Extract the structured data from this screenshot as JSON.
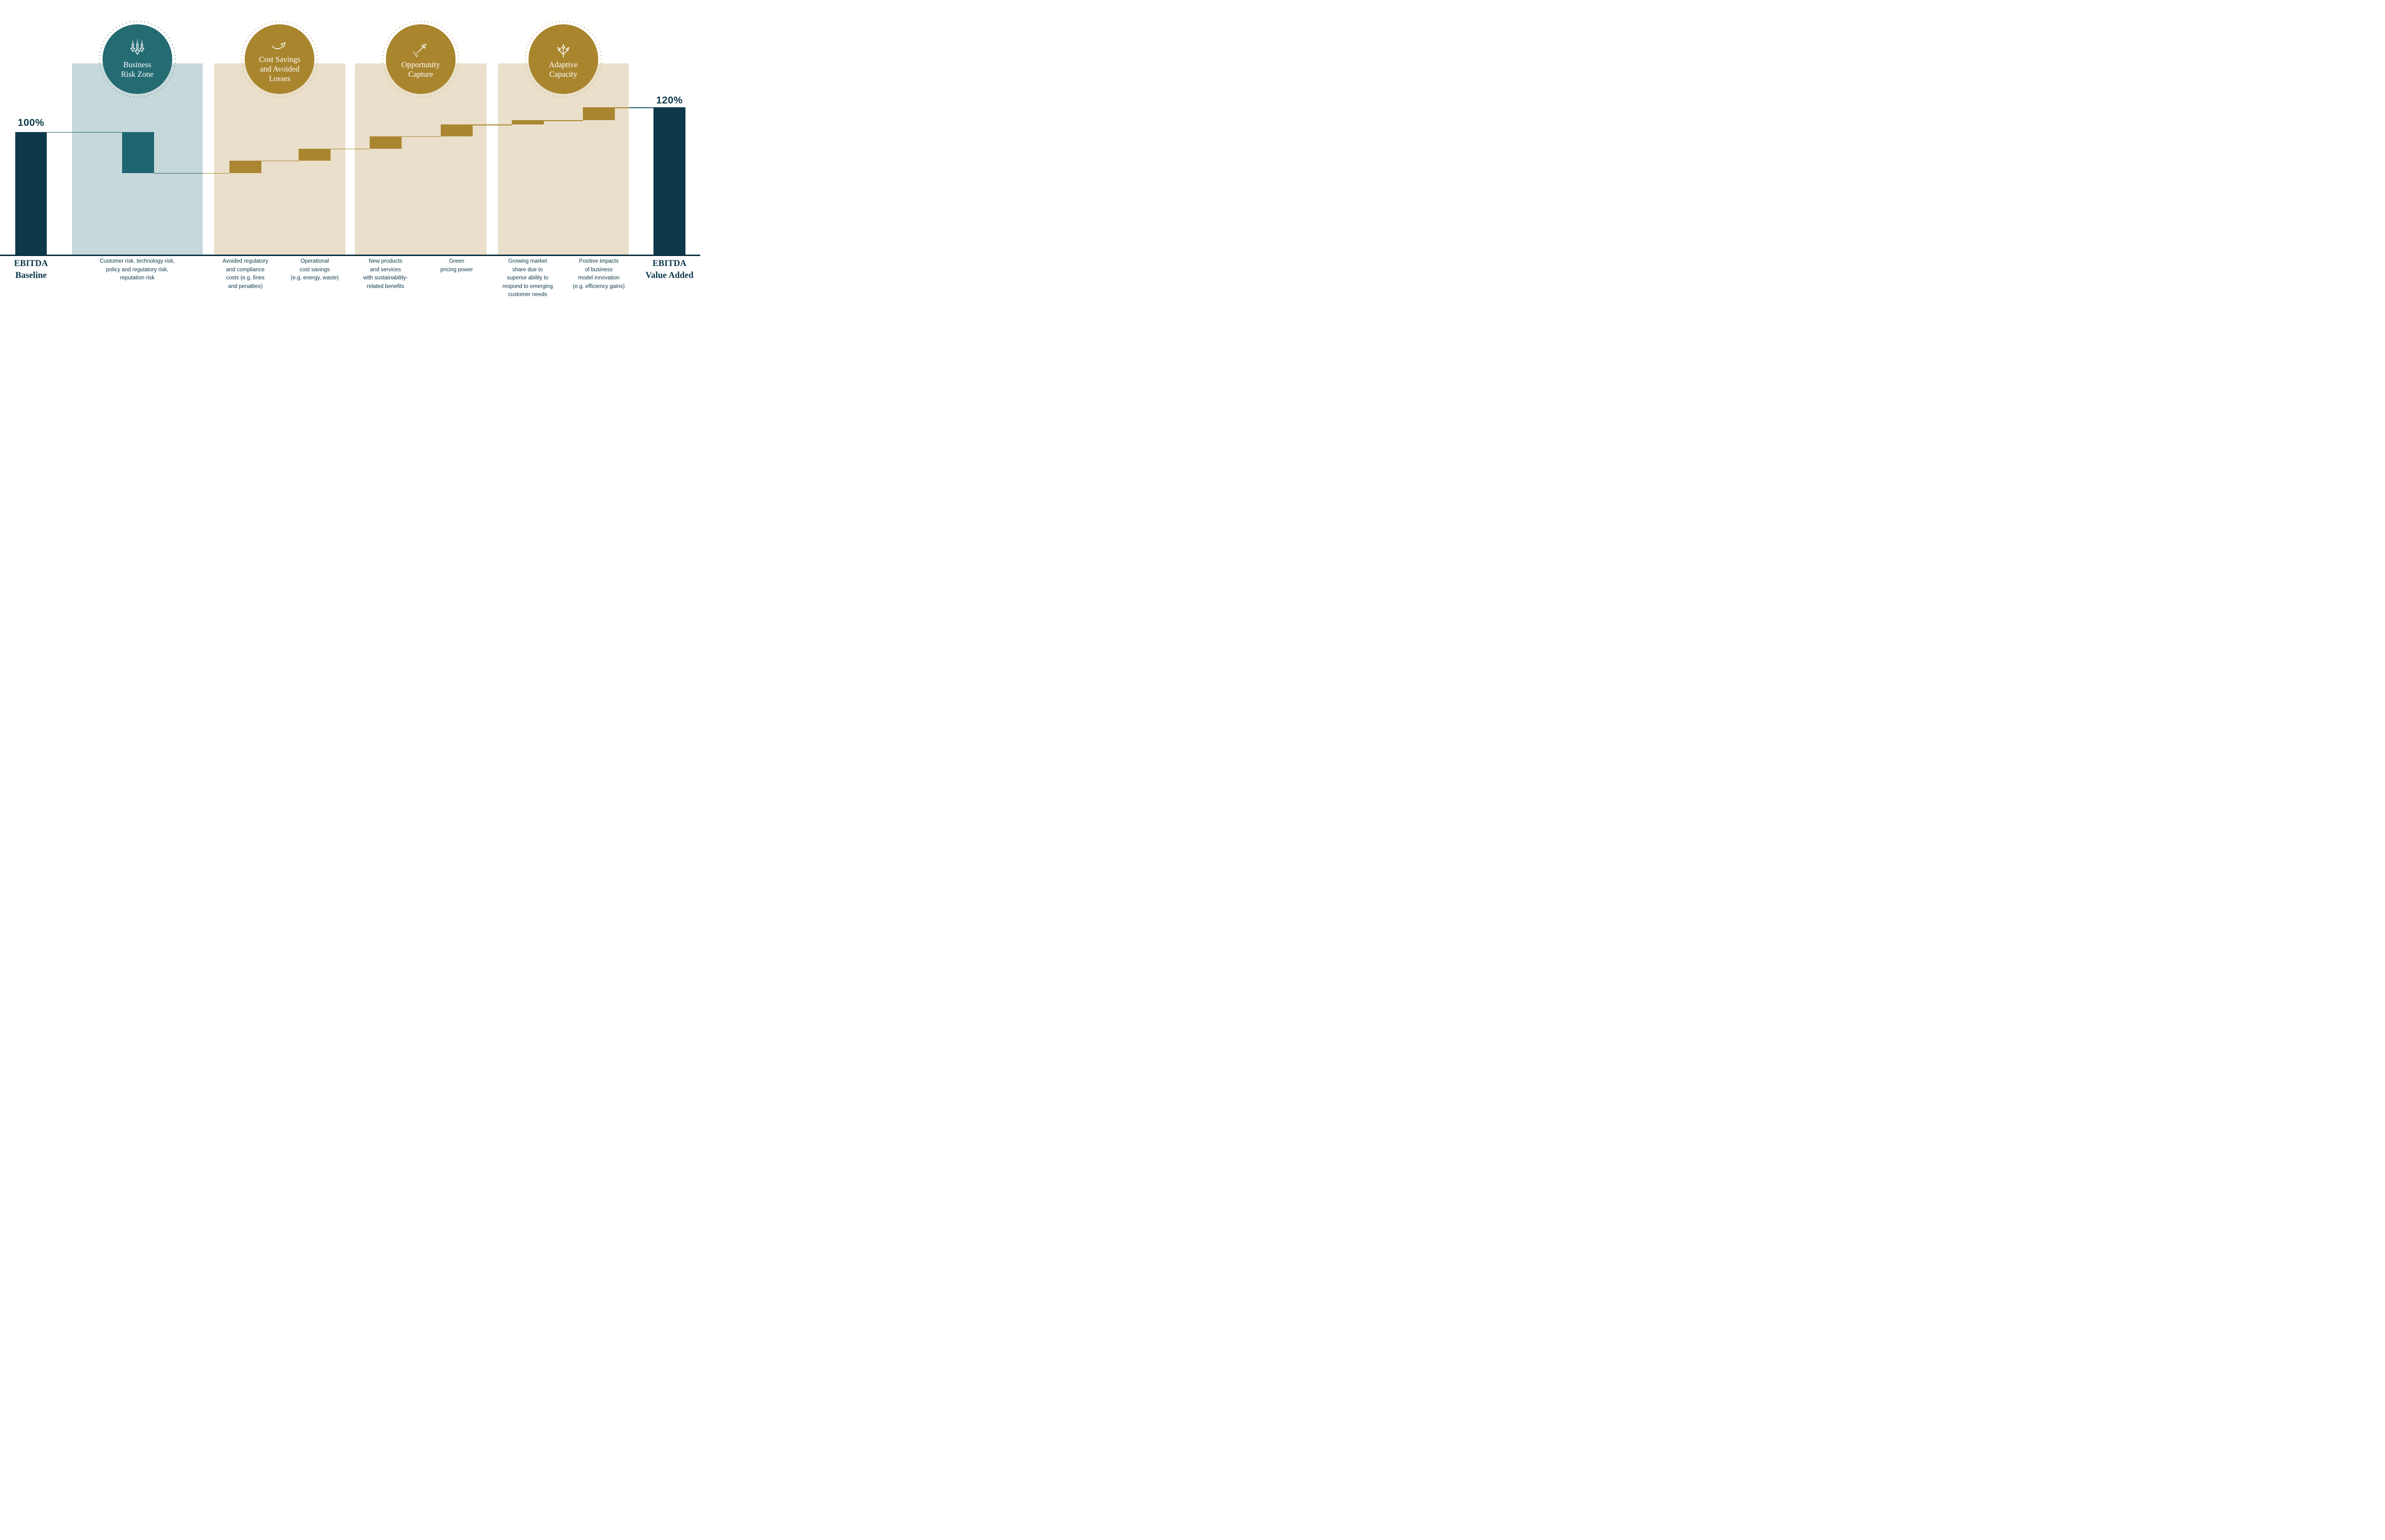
{
  "colors": {
    "navy": "#0d394b",
    "axis": "#0d3142",
    "teal": "#256b72",
    "teal_bar": "#1e6570",
    "teal_zone_bg": "#c7d8db",
    "gold": "#a9852e",
    "gold_bar": "#ab8630",
    "gold_zone_bg": "#e9dfca",
    "teal_ring_dots": "#86a8af",
    "gold_ring_dots": "#d3bd8c",
    "teal_connector": "#1d5f6e",
    "gold_connector": "#a9852c",
    "background": "#ffffff",
    "badge_text": "#ffffff"
  },
  "badges": [
    {
      "id": "business-risk-zone",
      "icon": "triple-down-arrows-icon",
      "lines": [
        "Business",
        "Risk Zone"
      ],
      "theme": "teal"
    },
    {
      "id": "cost-savings-and-avoided-losses",
      "icon": "curved-up-arrow-icon",
      "lines": [
        "Cost Savings",
        "and Avoided",
        "Losses"
      ],
      "theme": "gold"
    },
    {
      "id": "opportunity-capture",
      "icon": "diagonal-up-arrow-icon",
      "lines": [
        "Opportunity",
        "Capture"
      ],
      "theme": "gold"
    },
    {
      "id": "adaptive-capacity",
      "icon": "branching-arrows-icon",
      "lines": [
        "Adaptive",
        "Capacity"
      ],
      "theme": "gold"
    }
  ],
  "chart_data": {
    "type": "waterfall",
    "unit": "% of baseline EBITDA",
    "ylim": [
      0,
      120
    ],
    "grid": false,
    "legend": false,
    "start": {
      "display": "100%",
      "value": 100,
      "label_lines": [
        "EBITDA",
        "Baseline"
      ]
    },
    "end": {
      "display": "120%",
      "value": 120,
      "label_lines": [
        "EBITDA",
        "Value Added"
      ]
    },
    "steps": [
      {
        "zone": "Business Risk Zone",
        "delta": -33.5,
        "level_after": 66.5,
        "label_lines": [
          "Customer risk, technology risk,",
          "policy and regulatory risk,",
          "reputation risk"
        ]
      },
      {
        "zone": "Cost Savings and Avoided Losses",
        "delta": 10,
        "level_after": 76.5,
        "label_lines": [
          "Avoided regulatory",
          "and compliance",
          "costs (e.g. fines",
          "and penalties)"
        ]
      },
      {
        "zone": "Cost Savings and Avoided Losses",
        "delta": 10,
        "level_after": 86.5,
        "label_lines": [
          "Operational",
          "cost savings",
          "(e.g. energy, waste)"
        ]
      },
      {
        "zone": "Opportunity Capture",
        "delta": 10,
        "level_after": 96.5,
        "label_lines": [
          "New products",
          "and services",
          "with sustainability-",
          "related benefits"
        ]
      },
      {
        "zone": "Opportunity Capture",
        "delta": 9.5,
        "level_after": 106,
        "label_lines": [
          "Green",
          "pricing power"
        ]
      },
      {
        "zone": "Adaptive Capacity",
        "delta": 3.5,
        "level_after": 109.5,
        "label_lines": [
          "Growing market",
          "share due to",
          "superior ability to",
          "respond to emerging",
          "customer needs"
        ]
      },
      {
        "zone": "Adaptive Capacity",
        "delta": 10.5,
        "level_after": 120,
        "label_lines": [
          "Positive impacts",
          "of business",
          "model innovation",
          "(e.g. efficiency gains)"
        ]
      }
    ]
  }
}
